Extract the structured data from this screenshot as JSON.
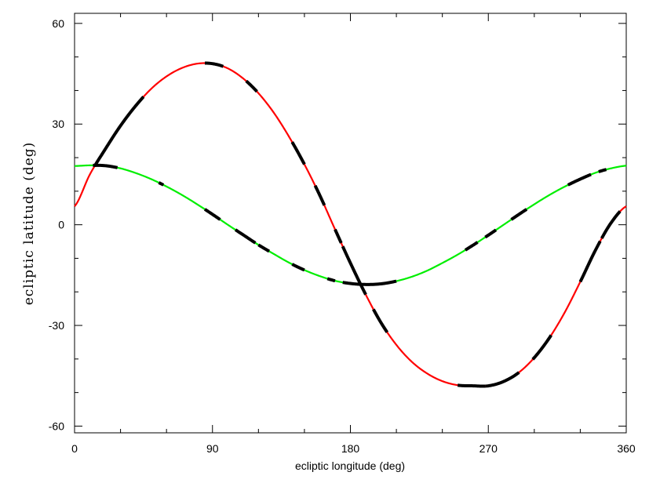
{
  "chart_data": {
    "type": "line",
    "xlabel": "ecliptic longitude (deg)",
    "ylabel": "ecliptic latitude (deg)",
    "xlim": [
      0,
      360
    ],
    "ylim": [
      -62,
      63
    ],
    "x_ticks": [
      0,
      90,
      180,
      270,
      360
    ],
    "x_tick_labels": [
      "0",
      "90",
      "180",
      "270",
      "360"
    ],
    "y_ticks": [
      -60,
      -30,
      0,
      30,
      60
    ],
    "y_tick_labels": [
      "-60",
      "-30",
      "0",
      "30",
      "60"
    ],
    "grid": false,
    "legend": "none",
    "series": [
      {
        "color": "#ff0000",
        "highlight_color": "#000000",
        "x": [
          0,
          10,
          20,
          30,
          40,
          50,
          60,
          70,
          80,
          90,
          100,
          110,
          120,
          130,
          140,
          150,
          160,
          170,
          180,
          190,
          200,
          210,
          220,
          230,
          240,
          250,
          260,
          270,
          280,
          290,
          300,
          310,
          320,
          330,
          340,
          350,
          360
        ],
        "y": [
          5.5,
          15,
          22.5,
          29.5,
          35.5,
          40.5,
          44.2,
          46.7,
          48,
          48,
          46.6,
          43.6,
          39.2,
          33.4,
          26.2,
          18,
          8.8,
          -1.4,
          -11.4,
          -20.8,
          -29.2,
          -35.8,
          -40.8,
          -44.3,
          -46.6,
          -47.8,
          -48,
          -48,
          -46.7,
          -44,
          -39.6,
          -33.6,
          -26,
          -17,
          -7.5,
          0.5,
          5.5
        ],
        "highlight_x_ranges": [
          [
            13,
            45
          ],
          [
            85,
            97
          ],
          [
            112,
            119
          ],
          [
            142,
            150
          ],
          [
            157,
            163
          ],
          [
            170,
            174
          ],
          [
            175,
            190
          ],
          [
            195,
            204
          ],
          [
            250,
            268
          ],
          [
            268,
            290
          ],
          [
            299,
            311
          ],
          [
            330,
            343
          ],
          [
            344,
            356
          ]
        ]
      },
      {
        "color": "#00ee00",
        "highlight_color": "#000000",
        "x": [
          0,
          10,
          20,
          30,
          40,
          50,
          60,
          70,
          80,
          90,
          100,
          110,
          120,
          130,
          140,
          150,
          160,
          170,
          180,
          190,
          200,
          210,
          220,
          230,
          240,
          250,
          260,
          270,
          280,
          290,
          300,
          310,
          320,
          330,
          340,
          350,
          360
        ],
        "y": [
          17.5,
          17.7,
          17.6,
          16.8,
          15.4,
          13.6,
          11.4,
          8.9,
          6.1,
          3.1,
          0,
          -3,
          -6,
          -8.7,
          -11.3,
          -13.5,
          -15.3,
          -16.7,
          -17.5,
          -17.8,
          -17.6,
          -16.8,
          -15.5,
          -13.7,
          -11.4,
          -8.9,
          -6.1,
          -3.1,
          0,
          3.1,
          6.1,
          8.9,
          11.4,
          13.6,
          15.5,
          16.8,
          17.6
        ],
        "highlight_x_ranges": [
          [
            12,
            28
          ],
          [
            55,
            58
          ],
          [
            85,
            95
          ],
          [
            105,
            118
          ],
          [
            120,
            127
          ],
          [
            142,
            150
          ],
          [
            165,
            170
          ],
          [
            175,
            210
          ],
          [
            255,
            263
          ],
          [
            268,
            275
          ],
          [
            285,
            295
          ],
          [
            322,
            337
          ],
          [
            342,
            347
          ]
        ]
      }
    ]
  }
}
